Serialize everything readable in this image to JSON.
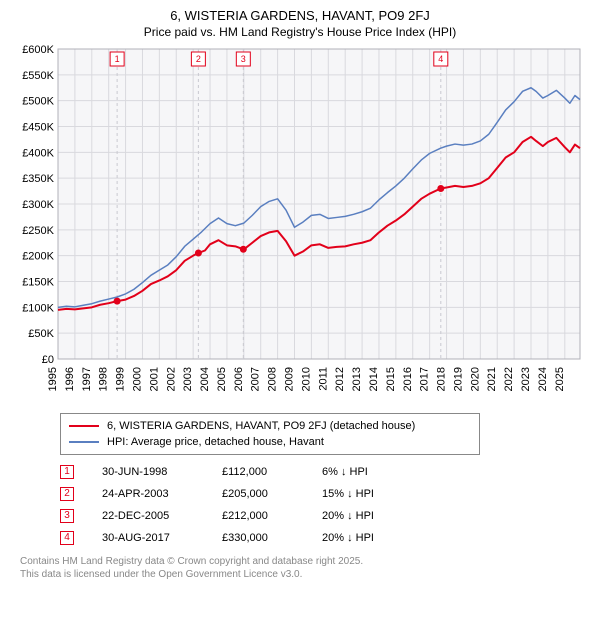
{
  "title_line1": "6, WISTERIA GARDENS, HAVANT, PO9 2FJ",
  "title_line2": "Price paid vs. HM Land Registry's House Price Index (HPI)",
  "chart": {
    "type": "line",
    "background_color": "#ffffff",
    "plot_bg": "#f6f6f8",
    "grid_color": "#d9d9de",
    "axis_color": "#000000",
    "x_start": 1995,
    "x_end": 2025.9,
    "x_ticks": [
      1995,
      1996,
      1997,
      1998,
      1999,
      2000,
      2001,
      2002,
      2003,
      2004,
      2005,
      2006,
      2007,
      2008,
      2009,
      2010,
      2011,
      2012,
      2013,
      2014,
      2015,
      2016,
      2017,
      2018,
      2019,
      2020,
      2021,
      2022,
      2023,
      2024,
      2025
    ],
    "y_min": 0,
    "y_max": 600000,
    "y_ticks": [
      0,
      50000,
      100000,
      150000,
      200000,
      250000,
      300000,
      350000,
      400000,
      450000,
      500000,
      550000,
      600000
    ],
    "y_tick_labels": [
      "£0",
      "£50K",
      "£100K",
      "£150K",
      "£200K",
      "£250K",
      "£300K",
      "£350K",
      "£400K",
      "£450K",
      "£500K",
      "£550K",
      "£600K"
    ],
    "series": [
      {
        "name": "6, WISTERIA GARDENS, HAVANT, PO9 2FJ (detached house)",
        "color": "#e2001a",
        "width": 2,
        "points": [
          [
            1995.0,
            95000
          ],
          [
            1995.5,
            97000
          ],
          [
            1996.0,
            96000
          ],
          [
            1996.5,
            98000
          ],
          [
            1997.0,
            100000
          ],
          [
            1997.5,
            105000
          ],
          [
            1998.0,
            108000
          ],
          [
            1998.5,
            112000
          ],
          [
            1999.0,
            115000
          ],
          [
            1999.5,
            122000
          ],
          [
            2000.0,
            132000
          ],
          [
            2000.5,
            145000
          ],
          [
            2001.0,
            152000
          ],
          [
            2001.5,
            160000
          ],
          [
            2002.0,
            172000
          ],
          [
            2002.5,
            190000
          ],
          [
            2003.0,
            200000
          ],
          [
            2003.3,
            205000
          ],
          [
            2003.7,
            210000
          ],
          [
            2004.0,
            222000
          ],
          [
            2004.5,
            230000
          ],
          [
            2005.0,
            220000
          ],
          [
            2005.5,
            218000
          ],
          [
            2006.0,
            212000
          ],
          [
            2006.5,
            225000
          ],
          [
            2007.0,
            238000
          ],
          [
            2007.5,
            245000
          ],
          [
            2008.0,
            248000
          ],
          [
            2008.5,
            228000
          ],
          [
            2009.0,
            200000
          ],
          [
            2009.5,
            208000
          ],
          [
            2010.0,
            220000
          ],
          [
            2010.5,
            222000
          ],
          [
            2011.0,
            215000
          ],
          [
            2011.5,
            217000
          ],
          [
            2012.0,
            218000
          ],
          [
            2012.5,
            222000
          ],
          [
            2013.0,
            225000
          ],
          [
            2013.5,
            230000
          ],
          [
            2014.0,
            245000
          ],
          [
            2014.5,
            258000
          ],
          [
            2015.0,
            268000
          ],
          [
            2015.5,
            280000
          ],
          [
            2016.0,
            295000
          ],
          [
            2016.5,
            310000
          ],
          [
            2017.0,
            320000
          ],
          [
            2017.65,
            330000
          ],
          [
            2018.0,
            332000
          ],
          [
            2018.5,
            335000
          ],
          [
            2019.0,
            333000
          ],
          [
            2019.5,
            335000
          ],
          [
            2020.0,
            340000
          ],
          [
            2020.5,
            350000
          ],
          [
            2021.0,
            370000
          ],
          [
            2021.5,
            390000
          ],
          [
            2022.0,
            400000
          ],
          [
            2022.5,
            420000
          ],
          [
            2023.0,
            430000
          ],
          [
            2023.3,
            422000
          ],
          [
            2023.7,
            412000
          ],
          [
            2024.0,
            420000
          ],
          [
            2024.5,
            428000
          ],
          [
            2025.0,
            410000
          ],
          [
            2025.3,
            400000
          ],
          [
            2025.6,
            415000
          ],
          [
            2025.9,
            408000
          ]
        ]
      },
      {
        "name": "HPI: Average price, detached house, Havant",
        "color": "#5a7fc0",
        "width": 1.5,
        "points": [
          [
            1995.0,
            100000
          ],
          [
            1995.5,
            102000
          ],
          [
            1996.0,
            101000
          ],
          [
            1996.5,
            104000
          ],
          [
            1997.0,
            107000
          ],
          [
            1997.5,
            112000
          ],
          [
            1998.0,
            116000
          ],
          [
            1998.5,
            120000
          ],
          [
            1999.0,
            126000
          ],
          [
            1999.5,
            135000
          ],
          [
            2000.0,
            148000
          ],
          [
            2000.5,
            162000
          ],
          [
            2001.0,
            172000
          ],
          [
            2001.5,
            182000
          ],
          [
            2002.0,
            198000
          ],
          [
            2002.5,
            218000
          ],
          [
            2003.0,
            232000
          ],
          [
            2003.5,
            246000
          ],
          [
            2004.0,
            262000
          ],
          [
            2004.5,
            273000
          ],
          [
            2005.0,
            262000
          ],
          [
            2005.5,
            258000
          ],
          [
            2006.0,
            263000
          ],
          [
            2006.5,
            278000
          ],
          [
            2007.0,
            295000
          ],
          [
            2007.5,
            305000
          ],
          [
            2008.0,
            310000
          ],
          [
            2008.5,
            288000
          ],
          [
            2009.0,
            255000
          ],
          [
            2009.5,
            265000
          ],
          [
            2010.0,
            278000
          ],
          [
            2010.5,
            280000
          ],
          [
            2011.0,
            272000
          ],
          [
            2011.5,
            274000
          ],
          [
            2012.0,
            276000
          ],
          [
            2012.5,
            280000
          ],
          [
            2013.0,
            285000
          ],
          [
            2013.5,
            292000
          ],
          [
            2014.0,
            308000
          ],
          [
            2014.5,
            322000
          ],
          [
            2015.0,
            335000
          ],
          [
            2015.5,
            350000
          ],
          [
            2016.0,
            368000
          ],
          [
            2016.5,
            385000
          ],
          [
            2017.0,
            398000
          ],
          [
            2017.65,
            408000
          ],
          [
            2018.0,
            412000
          ],
          [
            2018.5,
            416000
          ],
          [
            2019.0,
            414000
          ],
          [
            2019.5,
            416000
          ],
          [
            2020.0,
            422000
          ],
          [
            2020.5,
            435000
          ],
          [
            2021.0,
            458000
          ],
          [
            2021.5,
            482000
          ],
          [
            2022.0,
            498000
          ],
          [
            2022.5,
            518000
          ],
          [
            2023.0,
            525000
          ],
          [
            2023.3,
            518000
          ],
          [
            2023.7,
            505000
          ],
          [
            2024.0,
            510000
          ],
          [
            2024.5,
            520000
          ],
          [
            2025.0,
            505000
          ],
          [
            2025.3,
            495000
          ],
          [
            2025.6,
            510000
          ],
          [
            2025.9,
            502000
          ]
        ]
      }
    ],
    "events": [
      {
        "num": "1",
        "x": 1998.5,
        "date": "30-JUN-1998",
        "price": "£112,000",
        "delta": "6% ↓ HPI"
      },
      {
        "num": "2",
        "x": 2003.31,
        "date": "24-APR-2003",
        "price": "£205,000",
        "delta": "15% ↓ HPI"
      },
      {
        "num": "3",
        "x": 2005.97,
        "date": "22-DEC-2005",
        "price": "£212,000",
        "delta": "20% ↓ HPI"
      },
      {
        "num": "4",
        "x": 2017.66,
        "date": "30-AUG-2017",
        "price": "£330,000",
        "delta": "20% ↓ HPI"
      }
    ],
    "event_marker_color": "#e2001a",
    "event_dot_color": "#e2001a"
  },
  "legend": {
    "items": [
      {
        "color": "#e2001a",
        "label": "6, WISTERIA GARDENS, HAVANT, PO9 2FJ (detached house)"
      },
      {
        "color": "#5a7fc0",
        "label": "HPI: Average price, detached house, Havant"
      }
    ]
  },
  "footnote_line1": "Contains HM Land Registry data © Crown copyright and database right 2025.",
  "footnote_line2": "This data is licensed under the Open Government Licence v3.0."
}
